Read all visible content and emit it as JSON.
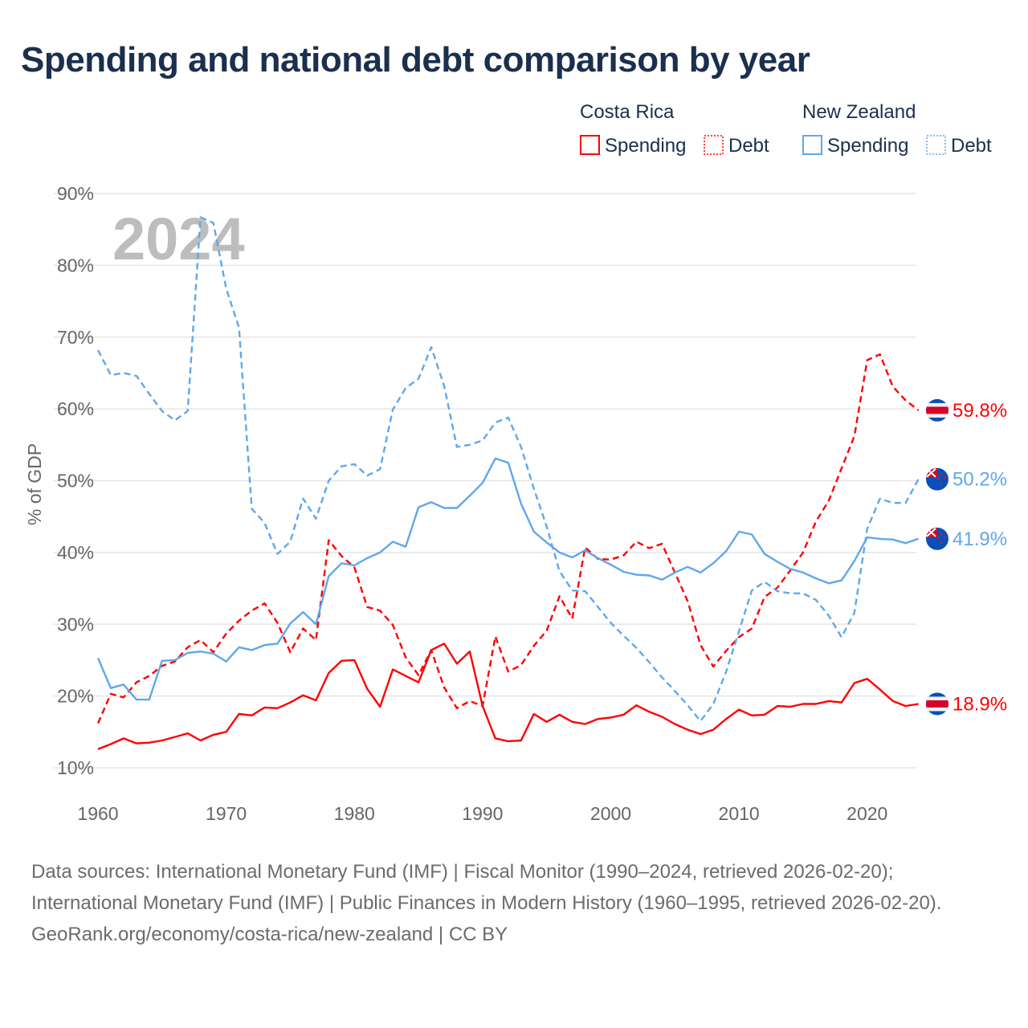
{
  "title": "Spending and national debt comparison by year",
  "chart_data": {
    "type": "line",
    "title": "Spending and national debt comparison by year",
    "ylabel": "% of GDP",
    "xlabel": "",
    "year_watermark": "2024",
    "xlim": [
      1960,
      2024
    ],
    "ylim": [
      10,
      90
    ],
    "xticks": [
      1960,
      1970,
      1980,
      1990,
      2000,
      2010,
      2020
    ],
    "yticks": [
      10,
      20,
      30,
      40,
      50,
      60,
      70,
      80,
      90
    ],
    "ytick_suffix": "%",
    "grid": true,
    "legend": {
      "placement": "top-right",
      "groups": [
        {
          "country": "Costa Rica",
          "items": [
            "Spending",
            "Debt"
          ]
        },
        {
          "country": "New Zealand",
          "items": [
            "Spending",
            "Debt"
          ]
        }
      ]
    },
    "colors": {
      "Costa Rica": "#ff0000",
      "New Zealand": "#5ea8ec"
    },
    "x_start": 1960,
    "series": [
      {
        "name": "Costa Rica Spending",
        "country": "Costa Rica",
        "kind": "Spending",
        "end_label": "18.9%",
        "values": [
          12.6,
          13.3,
          14.1,
          13.4,
          13.5,
          13.8,
          14.3,
          14.8,
          13.8,
          14.6,
          15.0,
          17.5,
          17.3,
          18.4,
          18.3,
          19.1,
          20.1,
          19.4,
          23.2,
          24.9,
          25.0,
          21.0,
          18.5,
          23.7,
          22.8,
          21.9,
          26.4,
          27.3,
          24.5,
          26.2,
          18.6,
          14.1,
          13.7,
          13.8,
          17.5,
          16.4,
          17.4,
          16.4,
          16.1,
          16.8,
          17.0,
          17.4,
          18.7,
          17.8,
          17.1,
          16.1,
          15.3,
          14.7,
          15.3,
          16.8,
          18.1,
          17.3,
          17.4,
          18.6,
          18.5,
          18.9,
          18.9,
          19.3,
          19.1,
          21.8,
          22.4,
          20.9,
          19.3,
          18.6,
          18.9
        ]
      },
      {
        "name": "Costa Rica Debt",
        "country": "Costa Rica",
        "kind": "Debt",
        "end_label": "59.8%",
        "values": [
          16.2,
          20.3,
          19.8,
          21.9,
          22.8,
          24.2,
          24.8,
          26.8,
          27.8,
          26.1,
          28.7,
          30.5,
          31.9,
          32.9,
          30.2,
          26.1,
          29.4,
          27.8,
          41.7,
          39.5,
          37.9,
          32.4,
          31.9,
          29.9,
          25.4,
          22.9,
          26.4,
          21.2,
          18.3,
          19.3,
          18.6,
          28.3,
          23.4,
          24.3,
          27.0,
          29.1,
          33.9,
          30.8,
          40.7,
          39.1,
          39.0,
          39.6,
          41.5,
          40.6,
          41.2,
          37.2,
          33.2,
          27.1,
          24.1,
          26.3,
          28.2,
          29.4,
          33.8,
          35.1,
          37.5,
          40.0,
          44.3,
          47.2,
          51.7,
          56.2,
          66.8,
          67.6,
          63.1,
          61.2,
          59.8
        ]
      },
      {
        "name": "New Zealand Spending",
        "country": "New Zealand",
        "kind": "Spending",
        "end_label": "41.9%",
        "values": [
          25.3,
          21.1,
          21.6,
          19.5,
          19.5,
          24.9,
          25.0,
          26.0,
          26.2,
          25.9,
          24.8,
          26.8,
          26.4,
          27.1,
          27.3,
          30.1,
          31.7,
          30.0,
          36.7,
          38.5,
          38.2,
          39.2,
          40.0,
          41.5,
          40.8,
          46.3,
          47.0,
          46.2,
          46.2,
          47.9,
          49.7,
          53.1,
          52.5,
          46.8,
          42.9,
          41.4,
          40.0,
          39.3,
          40.3,
          39.2,
          38.3,
          37.3,
          36.9,
          36.8,
          36.2,
          37.2,
          38.0,
          37.2,
          38.5,
          40.2,
          42.9,
          42.5,
          39.8,
          38.7,
          37.7,
          37.2,
          36.4,
          35.7,
          36.1,
          38.8,
          42.1,
          41.9,
          41.8,
          41.3,
          41.9
        ]
      },
      {
        "name": "New Zealand Debt",
        "country": "New Zealand",
        "kind": "Debt",
        "end_label": "50.2%",
        "values": [
          68.2,
          64.7,
          65.0,
          64.6,
          62.1,
          59.7,
          58.4,
          59.7,
          86.7,
          85.9,
          76.8,
          71.3,
          46.1,
          44.1,
          39.8,
          41.5,
          47.5,
          44.7,
          50.0,
          52.0,
          52.3,
          50.7,
          51.6,
          59.9,
          62.9,
          64.2,
          68.6,
          63.2,
          54.7,
          55.0,
          55.6,
          58.1,
          58.8,
          54.7,
          48.9,
          43.6,
          37.4,
          34.7,
          34.6,
          32.4,
          30.2,
          28.4,
          26.7,
          24.7,
          22.6,
          20.7,
          18.7,
          16.5,
          18.9,
          23.4,
          29.0,
          34.7,
          35.9,
          34.6,
          34.3,
          34.3,
          33.4,
          31.2,
          28.2,
          31.6,
          43.3,
          47.5,
          46.9,
          46.9,
          50.2
        ]
      }
    ]
  },
  "footer": {
    "sources": "Data sources: International Monetary Fund (IMF) | Fiscal Monitor (1990–2024, retrieved 2026-02-20); International Monetary Fund (IMF) | Public Finances in Modern History (1960–1995, retrieved 2026-02-20).",
    "credit": "GeoRank.org/economy/costa-rica/new-zealand | CC BY"
  }
}
